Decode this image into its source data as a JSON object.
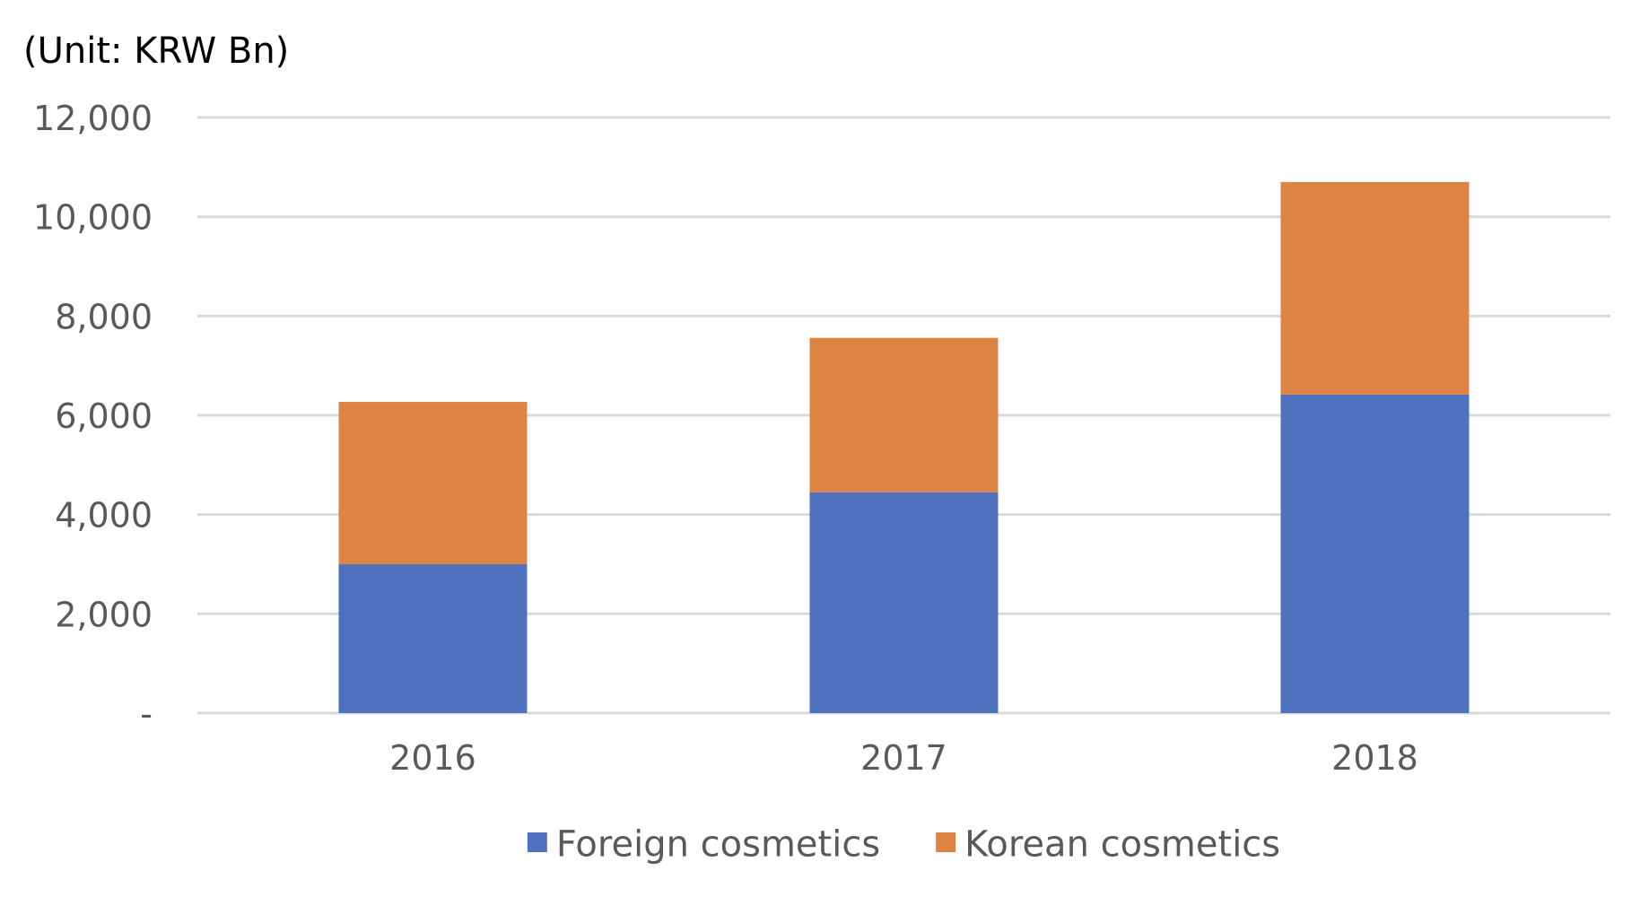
{
  "chart_data": {
    "type": "bar",
    "stacked": true,
    "unit_label": "(Unit: KRW Bn)",
    "categories": [
      "2016",
      "2017",
      "2018"
    ],
    "series": [
      {
        "name": "Foreign cosmetics",
        "color": "#4F71BE",
        "values": [
          3000,
          4450,
          6420
        ]
      },
      {
        "name": "Korean cosmetics",
        "color": "#DD8344",
        "values": [
          3270,
          3110,
          4280
        ]
      }
    ],
    "ylim": [
      0,
      12000
    ],
    "yticks": [
      {
        "value": 0,
        "label": "-"
      },
      {
        "value": 2000,
        "label": "2,000"
      },
      {
        "value": 4000,
        "label": "4,000"
      },
      {
        "value": 6000,
        "label": "6,000"
      },
      {
        "value": 8000,
        "label": "8,000"
      },
      {
        "value": 10000,
        "label": "10,000"
      },
      {
        "value": 12000,
        "label": "12,000"
      }
    ],
    "grid": true,
    "legend_position": "bottom-center",
    "gridline_color": "#D9D9D9"
  }
}
